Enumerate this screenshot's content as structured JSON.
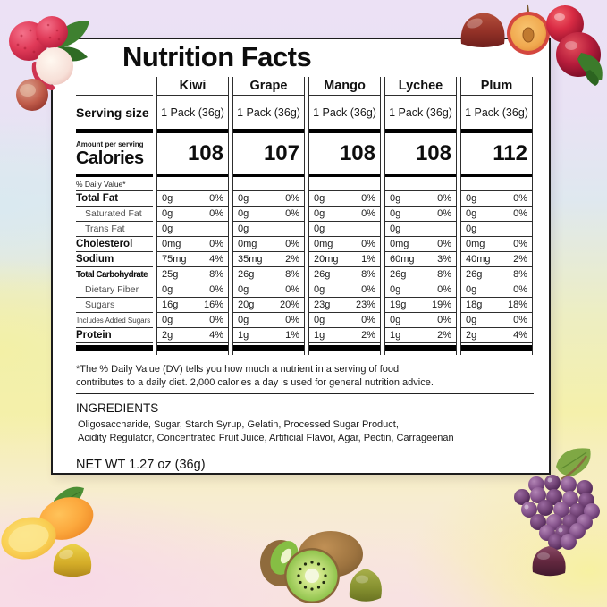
{
  "title": "Nutrition Facts",
  "table": {
    "fruits": [
      "Kiwi",
      "Grape",
      "Mango",
      "Lychee",
      "Plum"
    ],
    "serving_size_label": "Serving size",
    "serving_size": "1 Pack (36g)",
    "amount_per_serving_label": "Amount per serving",
    "calories_label": "Calories",
    "calories": [
      "108",
      "107",
      "108",
      "108",
      "112"
    ],
    "daily_value_header": "% Daily Value*",
    "nutrients": [
      {
        "label": "Total Fat",
        "style": "bold",
        "amounts": [
          "0g",
          "0g",
          "0g",
          "0g",
          "0g"
        ],
        "dv": [
          "0%",
          "0%",
          "0%",
          "0%",
          "0%"
        ]
      },
      {
        "label": "Saturated Fat",
        "style": "indent",
        "amounts": [
          "0g",
          "0g",
          "0g",
          "0g",
          "0g"
        ],
        "dv": [
          "0%",
          "0%",
          "0%",
          "0%",
          "0%"
        ]
      },
      {
        "label": "Trans Fat",
        "style": "indent",
        "amounts": [
          "0g",
          "0g",
          "0g",
          "0g",
          "0g"
        ],
        "dv": [
          "",
          "",
          "",
          "",
          ""
        ]
      },
      {
        "label": "Cholesterol",
        "style": "bold",
        "amounts": [
          "0mg",
          "0mg",
          "0mg",
          "0mg",
          "0mg"
        ],
        "dv": [
          "0%",
          "0%",
          "0%",
          "0%",
          "0%"
        ]
      },
      {
        "label": "Sodium",
        "style": "bold",
        "amounts": [
          "75mg",
          "35mg",
          "20mg",
          "60mg",
          "40mg"
        ],
        "dv": [
          "4%",
          "2%",
          "1%",
          "3%",
          "2%"
        ]
      },
      {
        "label": "Total Carbohydrate",
        "style": "boldsm",
        "amounts": [
          "25g",
          "26g",
          "26g",
          "26g",
          "26g"
        ],
        "dv": [
          "8%",
          "8%",
          "8%",
          "8%",
          "8%"
        ]
      },
      {
        "label": "Dietary Fiber",
        "style": "indent",
        "amounts": [
          "0g",
          "0g",
          "0g",
          "0g",
          "0g"
        ],
        "dv": [
          "0%",
          "0%",
          "0%",
          "0%",
          "0%"
        ]
      },
      {
        "label": "Sugars",
        "style": "indent",
        "amounts": [
          "16g",
          "20g",
          "23g",
          "19g",
          "18g"
        ],
        "dv": [
          "16%",
          "20%",
          "23%",
          "19%",
          "18%"
        ]
      },
      {
        "label": "Includes Added Sugars",
        "style": "small",
        "amounts": [
          "0g",
          "0g",
          "0g",
          "0g",
          "0g"
        ],
        "dv": [
          "0%",
          "0%",
          "0%",
          "0%",
          "0%"
        ]
      },
      {
        "label": "Protein",
        "style": "bold",
        "amounts": [
          "2g",
          "1g",
          "1g",
          "1g",
          "2g"
        ],
        "dv": [
          "4%",
          "1%",
          "2%",
          "2%",
          "4%"
        ]
      }
    ]
  },
  "footnote": {
    "line1": "*The % Daily Value (DV) tells you how much a nutrient in a serving of food",
    "line2": "contributes to a daily diet. 2,000 calories a day is used for general nutrition advice."
  },
  "ingredients": {
    "title": "INGREDIENTS",
    "line1": "Oligosaccharide, Sugar, Starch Syrup, Gelatin, Processed Sugar Product,",
    "line2": "Acidity Regulator, Concentrated Fruit Juice, Artificial Flavor, Agar, Pectin, Carrageenan"
  },
  "net_weight": "NET WT 1.27 oz (36g)",
  "colors": {
    "card_background": "#ffffff",
    "card_border": "#1c1c1c",
    "rule_line": "#2e2e2e",
    "heavy_bar": "#000000"
  },
  "decorations": [
    "lychee-fruits",
    "red-plums-with-gummy",
    "mango-with-gummy",
    "kiwi-with-gummy",
    "grapes-with-gummy"
  ]
}
